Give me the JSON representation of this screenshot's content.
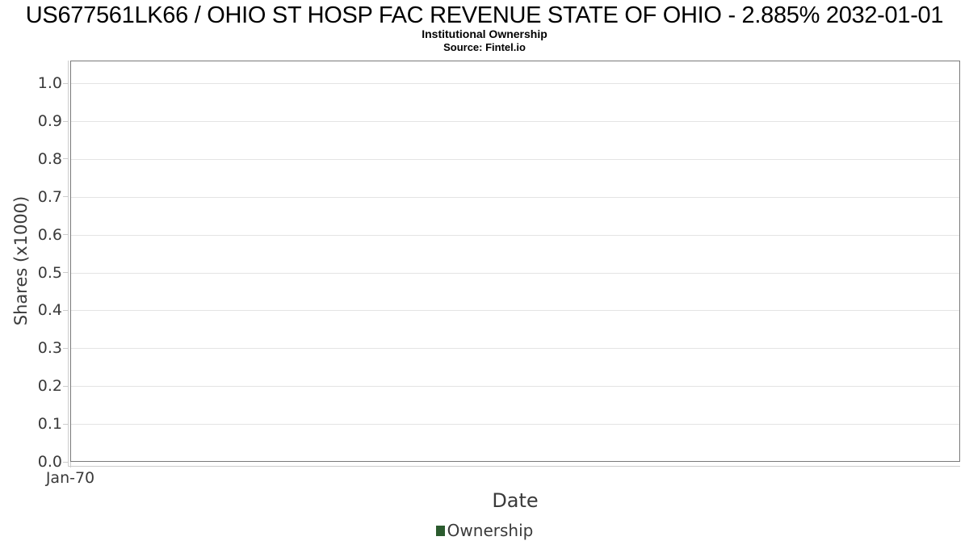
{
  "header": {
    "title": "US677561LK66 / OHIO ST HOSP FAC REVENUE STATE OF OHIO - 2.885% 2032-01-01",
    "subtitle": "Institutional Ownership",
    "source": "Source: Fintel.io"
  },
  "chart_data": {
    "type": "line",
    "title": "US677561LK66 / OHIO ST HOSP FAC REVENUE STATE OF OHIO - 2.885% 2032-01-01",
    "subtitle": "Institutional Ownership",
    "source": "Source: Fintel.io",
    "xlabel": "Date",
    "ylabel": "Shares (x1000)",
    "x_ticks": [
      {
        "label": "Jan-70",
        "pos": 0
      }
    ],
    "y_ticks": [
      "0.0",
      "0.1",
      "0.2",
      "0.3",
      "0.4",
      "0.5",
      "0.6",
      "0.7",
      "0.8",
      "0.9",
      "1.0"
    ],
    "ylim": [
      0,
      1.06
    ],
    "grid": "horizontal",
    "legend_position": "bottom",
    "series": [
      {
        "name": "Ownership",
        "color": "#2b5b2e",
        "values": []
      }
    ]
  },
  "colors": {
    "background": "#ffffff",
    "plot_border": "#7a7a7a",
    "gridline": "#e4e4e4",
    "axis_line": "#cccccc",
    "text_dark": "#3a3a3a",
    "title_text": "#000000",
    "legend_marker": "#2b5b2e"
  }
}
